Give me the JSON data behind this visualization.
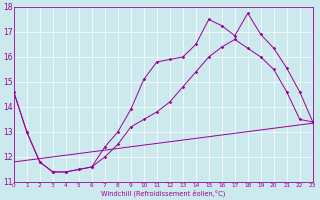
{
  "background_color": "#cce9ee",
  "line_color": "#990099",
  "xlabel": "Windchill (Refroidissement éolien,°C)",
  "xlim": [
    0,
    23
  ],
  "ylim": [
    11,
    18
  ],
  "xticks": [
    0,
    1,
    2,
    3,
    4,
    5,
    6,
    7,
    8,
    9,
    10,
    11,
    12,
    13,
    14,
    15,
    16,
    17,
    18,
    19,
    20,
    21,
    22,
    23
  ],
  "yticks": [
    11,
    12,
    13,
    14,
    15,
    16,
    17,
    18
  ],
  "line1_x": [
    0,
    1,
    2,
    3,
    4,
    5,
    6,
    7,
    8,
    9,
    10,
    11,
    12,
    13,
    14,
    15,
    16,
    17,
    18,
    19,
    20,
    21,
    22,
    23
  ],
  "line1_y": [
    14.6,
    13.0,
    11.8,
    11.4,
    11.4,
    11.5,
    11.6,
    12.4,
    13.0,
    13.9,
    15.1,
    15.8,
    15.9,
    16.0,
    16.5,
    17.5,
    17.25,
    16.85,
    17.75,
    16.9,
    16.35,
    15.55,
    14.6,
    13.4
  ],
  "line2_x": [
    0,
    1,
    2,
    3,
    4,
    5,
    6,
    7,
    8,
    9,
    10,
    11,
    12,
    13,
    14,
    15,
    16,
    17,
    18,
    19,
    20,
    21,
    22,
    23
  ],
  "line2_y": [
    14.6,
    13.0,
    11.8,
    11.4,
    11.4,
    11.5,
    11.6,
    12.0,
    12.5,
    13.2,
    13.5,
    13.8,
    14.2,
    14.8,
    15.4,
    16.0,
    16.4,
    16.7,
    16.35,
    16.0,
    15.5,
    14.6,
    13.5,
    13.4
  ],
  "line3_x": [
    0,
    23
  ],
  "line3_y": [
    11.8,
    13.35
  ],
  "grid_color": "#ffffff",
  "spine_color": "#990099"
}
